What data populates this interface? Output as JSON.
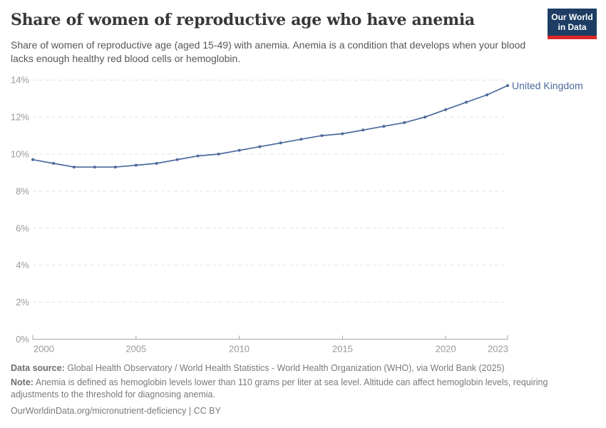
{
  "header": {
    "title": "Share of women of reproductive age who have anemia",
    "subtitle": "Share of women of reproductive age (aged 15-49) with anemia. Anemia is a condition that develops when your blood lacks enough healthy red blood cells or hemoglobin.",
    "logo": {
      "line1": "Our World",
      "line2": "in Data"
    }
  },
  "chart_data": {
    "type": "line",
    "title": "Share of women of reproductive age who have anemia",
    "x": [
      2000,
      2001,
      2002,
      2003,
      2004,
      2005,
      2006,
      2007,
      2008,
      2009,
      2010,
      2011,
      2012,
      2013,
      2014,
      2015,
      2016,
      2017,
      2018,
      2019,
      2020,
      2021,
      2022,
      2023
    ],
    "series": [
      {
        "name": "United Kingdom",
        "color": "#4C6A9C",
        "values": [
          9.7,
          9.5,
          9.3,
          9.3,
          9.3,
          9.4,
          9.5,
          9.7,
          9.9,
          10.0,
          10.2,
          10.4,
          10.6,
          10.8,
          11.0,
          11.1,
          11.3,
          11.5,
          11.7,
          12.0,
          12.4,
          12.8,
          13.2,
          13.7
        ]
      }
    ],
    "xlabel": "",
    "ylabel": "",
    "ylim": [
      0,
      14
    ],
    "xlim": [
      2000,
      2023
    ],
    "unit": "%",
    "grid": "dashed-horizontal",
    "legend_position": "end-of-line-label",
    "y_ticks": [
      {
        "value": 0,
        "label": "0%"
      },
      {
        "value": 2,
        "label": "2%"
      },
      {
        "value": 4,
        "label": "4%"
      },
      {
        "value": 6,
        "label": "6%"
      },
      {
        "value": 8,
        "label": "8%"
      },
      {
        "value": 10,
        "label": "10%"
      },
      {
        "value": 12,
        "label": "12%"
      },
      {
        "value": 14,
        "label": "14%"
      }
    ],
    "x_ticks": [
      {
        "value": 2000,
        "label": "2000"
      },
      {
        "value": 2005,
        "label": "2005"
      },
      {
        "value": 2010,
        "label": "2010"
      },
      {
        "value": 2015,
        "label": "2015"
      },
      {
        "value": 2020,
        "label": "2020"
      },
      {
        "value": 2023,
        "label": "2023"
      }
    ]
  },
  "footer": {
    "source_label": "Data source:",
    "source_text": " Global Health Observatory / World Health Statistics - World Health Organization (WHO), via World Bank (2025)",
    "note_label": "Note:",
    "note_text": " Anemia is defined as hemoglobin levels lower than 110 grams per liter at sea level. Altitude can affect hemoglobin levels, requiring adjustments to the threshold for diagnosing anemia.",
    "url_text": "OurWorldinData.org/micronutrient-deficiency | CC BY"
  },
  "colors": {
    "line": "#4C6A9C",
    "entity_label": "#4C6A9C",
    "gridline": "#e2e2e2",
    "axis_line": "#a6a6a6",
    "tick_label": "#999999",
    "title": "#383838",
    "subtitle": "#575757",
    "footer": "#7a7a7a",
    "logo_bg": "#1d3d63",
    "logo_bar": "#dc2828"
  }
}
